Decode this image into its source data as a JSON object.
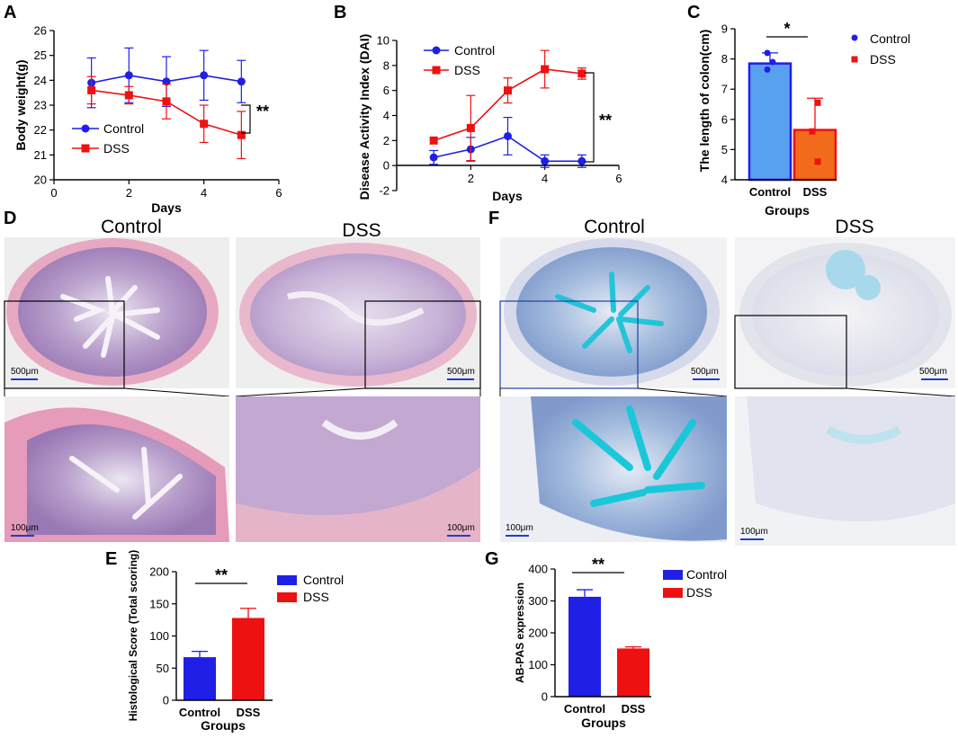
{
  "colors": {
    "control": "#1f1fe6",
    "dss": "#ee1111",
    "control_bar_c": "#5aa0f0",
    "dss_bar_c": "#f26a1c"
  },
  "chart_data": [
    {
      "panel": "A",
      "type": "line",
      "xlabel": "Days",
      "ylabel": "Body weight(g)",
      "xlim": [
        0,
        6
      ],
      "ylim": [
        20,
        26
      ],
      "xticks": [
        "0",
        "2",
        "4",
        "6"
      ],
      "yticks": [
        "20",
        "21",
        "22",
        "23",
        "24",
        "25",
        "26"
      ],
      "x": [
        1,
        2,
        3,
        4,
        5
      ],
      "series": [
        {
          "name": "Control",
          "values": [
            23.9,
            24.2,
            23.95,
            24.2,
            23.95
          ],
          "errors": [
            1.0,
            1.1,
            1.0,
            1.0,
            0.85
          ]
        },
        {
          "name": "DSS",
          "values": [
            23.6,
            23.4,
            23.15,
            22.25,
            21.8
          ],
          "errors": [
            0.55,
            0.35,
            0.7,
            0.75,
            0.95
          ]
        }
      ],
      "legend": [
        "Control",
        "DSS"
      ],
      "legend_position": "bottom-left",
      "annotation": "**"
    },
    {
      "panel": "B",
      "type": "line",
      "xlabel": "Days",
      "ylabel": "Disease Activity Index (DAI)",
      "xlim": [
        0,
        6
      ],
      "ylim": [
        -2,
        10
      ],
      "xticks": [
        "2",
        "4",
        "6"
      ],
      "yticks": [
        "-2",
        "0",
        "2",
        "4",
        "6",
        "8",
        "10"
      ],
      "x": [
        1,
        2,
        3,
        4,
        5
      ],
      "series": [
        {
          "name": "Control",
          "values": [
            0.65,
            1.3,
            2.35,
            0.35,
            0.35
          ],
          "errors": [
            0.55,
            0.95,
            1.5,
            0.5,
            0.5
          ]
        },
        {
          "name": "DSS",
          "values": [
            2.0,
            3.0,
            6.0,
            7.7,
            7.35
          ],
          "errors": [
            0,
            2.6,
            1.0,
            1.5,
            0.45
          ]
        }
      ],
      "legend": [
        "Control",
        "DSS"
      ],
      "legend_position": "top-left",
      "annotation": "**"
    },
    {
      "panel": "C",
      "type": "bar",
      "xlabel": "Groups",
      "ylabel": "The length of colon(cm)",
      "ylim": [
        4,
        9
      ],
      "yticks": [
        "4",
        "5",
        "6",
        "7",
        "8",
        "9"
      ],
      "categories": [
        "Control",
        "DSS"
      ],
      "values": [
        7.85,
        5.65
      ],
      "errors": [
        0.35,
        1.05
      ],
      "points": [
        [
          8.2,
          7.9,
          7.65
        ],
        [
          6.55,
          5.6,
          4.6
        ]
      ],
      "legend": [
        "Control",
        "DSS"
      ],
      "legend_position": "right",
      "annotation": "*"
    },
    {
      "panel": "E",
      "type": "bar",
      "xlabel": "Groups",
      "ylabel": "Histological Score (Total scoring)",
      "ylim": [
        0,
        200
      ],
      "yticks": [
        "0",
        "50",
        "100",
        "150",
        "200"
      ],
      "categories": [
        "Control",
        "DSS"
      ],
      "values": [
        67,
        128
      ],
      "errors": [
        9,
        15
      ],
      "legend": [
        "Control",
        "DSS"
      ],
      "legend_position": "right",
      "annotation": "**"
    },
    {
      "panel": "G",
      "type": "bar",
      "xlabel": "Groups",
      "ylabel": "AB-PAS expression",
      "ylim": [
        0,
        400
      ],
      "yticks": [
        "0",
        "100",
        "200",
        "300",
        "400"
      ],
      "categories": [
        "Control",
        "DSS"
      ],
      "values": [
        313,
        151
      ],
      "errors": [
        22,
        5
      ],
      "legend": [
        "Control",
        "DSS"
      ],
      "legend_position": "right",
      "annotation": "**"
    }
  ],
  "histology": {
    "panel_d": "D",
    "panel_f": "F",
    "control_label": "Control",
    "dss_label": "DSS",
    "scale_large": "500μm",
    "scale_small": "100μm"
  },
  "panel_labels": {
    "a": "A",
    "b": "B",
    "c": "C",
    "e": "E",
    "g": "G"
  }
}
